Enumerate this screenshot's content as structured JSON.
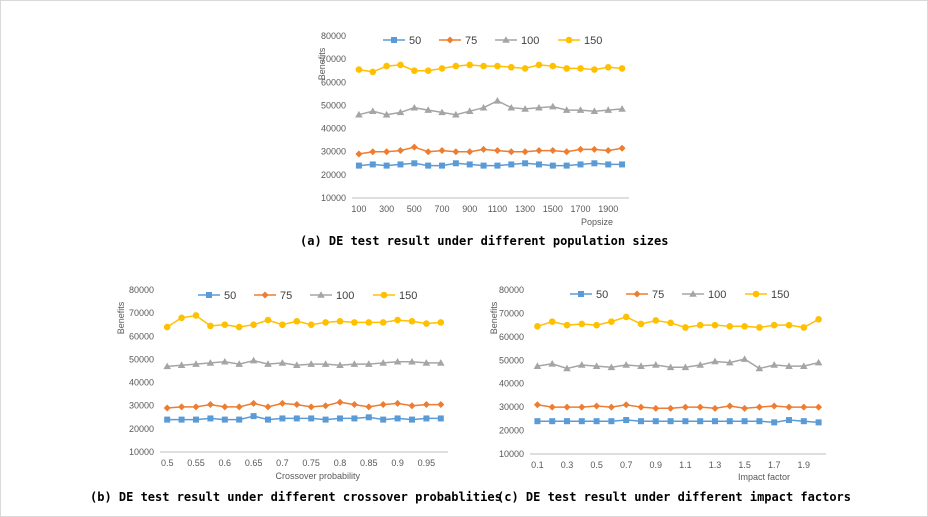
{
  "captions": {
    "a": "(a) DE test result under different population sizes",
    "b": "(b) DE test result under different crossover probablities",
    "c": "(c) DE test result under different impact factors"
  },
  "colors": {
    "s50": "#5b9bd5",
    "s75": "#ed7d31",
    "s100": "#a5a5a5",
    "s150": "#ffc000"
  },
  "chart_data": [
    {
      "type": "line",
      "ylabel": "Benefits",
      "xlabel": "Popsize",
      "ylim": [
        10000,
        80000
      ],
      "yticks": [
        "10000",
        "20000",
        "30000",
        "40000",
        "50000",
        "60000",
        "70000",
        "80000"
      ],
      "x": [
        100,
        200,
        300,
        400,
        500,
        600,
        700,
        800,
        900,
        1000,
        1100,
        1200,
        1300,
        1400,
        1500,
        1600,
        1700,
        1800,
        1900,
        2000
      ],
      "xtick_labels": [
        "100",
        "300",
        "500",
        "700",
        "900",
        "1100",
        "1300",
        "1500",
        "1700",
        "1900"
      ],
      "legend_position": "top",
      "series": [
        {
          "name": "50",
          "values": [
            24000,
            24500,
            24000,
            24500,
            25000,
            24000,
            24000,
            25000,
            24500,
            24000,
            24000,
            24500,
            25000,
            24500,
            24000,
            24000,
            24500,
            25000,
            24500,
            24500
          ]
        },
        {
          "name": "75",
          "values": [
            29000,
            30000,
            30000,
            30500,
            32000,
            30000,
            30500,
            30000,
            30000,
            31000,
            30500,
            30000,
            30000,
            30500,
            30500,
            30000,
            31000,
            31000,
            30500,
            31500
          ]
        },
        {
          "name": "100",
          "values": [
            46000,
            47500,
            46000,
            47000,
            49000,
            48000,
            47000,
            46000,
            47500,
            49000,
            52000,
            49000,
            48500,
            49000,
            49500,
            48000,
            48000,
            47500,
            48000,
            48500
          ]
        },
        {
          "name": "150",
          "values": [
            65500,
            64500,
            67000,
            67500,
            65000,
            65000,
            66000,
            67000,
            67500,
            67000,
            67000,
            66500,
            66000,
            67500,
            67000,
            66000,
            66000,
            65500,
            66500,
            66000
          ]
        }
      ]
    },
    {
      "type": "line",
      "ylabel": "Benefits",
      "xlabel": "Crossover probability",
      "ylim": [
        10000,
        80000
      ],
      "yticks": [
        "10000",
        "20000",
        "30000",
        "40000",
        "50000",
        "60000",
        "70000",
        "80000"
      ],
      "x": [
        0.5,
        0.525,
        0.55,
        0.575,
        0.6,
        0.625,
        0.65,
        0.675,
        0.7,
        0.725,
        0.75,
        0.775,
        0.8,
        0.825,
        0.85,
        0.875,
        0.9,
        0.925,
        0.95,
        0.975
      ],
      "xtick_labels": [
        "0.5",
        "0.55",
        "0.6",
        "0.65",
        "0.7",
        "0.75",
        "0.8",
        "0.85",
        "0.9",
        "0.95"
      ],
      "legend_position": "top",
      "series": [
        {
          "name": "50",
          "values": [
            24000,
            24000,
            24000,
            24500,
            24000,
            24000,
            25500,
            24000,
            24500,
            24500,
            24500,
            24000,
            24500,
            24500,
            25000,
            24000,
            24500,
            24000,
            24500,
            24500
          ]
        },
        {
          "name": "75",
          "values": [
            29000,
            29500,
            29500,
            30500,
            29500,
            29500,
            31000,
            29500,
            31000,
            30500,
            29500,
            30000,
            31500,
            30500,
            29500,
            30500,
            31000,
            30000,
            30500,
            30500
          ]
        },
        {
          "name": "100",
          "values": [
            47000,
            47500,
            48000,
            48500,
            49000,
            48000,
            49500,
            48000,
            48500,
            47500,
            48000,
            48000,
            47500,
            48000,
            48000,
            48500,
            49000,
            49000,
            48500,
            48500
          ]
        },
        {
          "name": "150",
          "values": [
            64000,
            68000,
            69000,
            64500,
            65000,
            64000,
            65000,
            67000,
            65000,
            66500,
            65000,
            66000,
            66500,
            66000,
            66000,
            66000,
            67000,
            66500,
            65500,
            66000
          ]
        }
      ]
    },
    {
      "type": "line",
      "ylabel": "Benefits",
      "xlabel": "Impact factor",
      "ylim": [
        10000,
        80000
      ],
      "yticks": [
        "10000",
        "20000",
        "30000",
        "40000",
        "50000",
        "60000",
        "70000",
        "80000"
      ],
      "x": [
        0.1,
        0.2,
        0.3,
        0.4,
        0.5,
        0.6,
        0.7,
        0.8,
        0.9,
        1.0,
        1.1,
        1.2,
        1.3,
        1.4,
        1.5,
        1.6,
        1.7,
        1.8,
        1.9,
        2.0
      ],
      "xtick_labels": [
        "0.1",
        "0.3",
        "0.5",
        "0.7",
        "0.9",
        "1.1",
        "1.3",
        "1.5",
        "1.7",
        "1.9"
      ],
      "legend_position": "top",
      "series": [
        {
          "name": "50",
          "values": [
            24000,
            24000,
            24000,
            24000,
            24000,
            24000,
            24500,
            24000,
            24000,
            24000,
            24000,
            24000,
            24000,
            24000,
            24000,
            24000,
            23500,
            24500,
            24000,
            23500
          ]
        },
        {
          "name": "75",
          "values": [
            31000,
            30000,
            30000,
            30000,
            30500,
            30000,
            31000,
            30000,
            29500,
            29500,
            30000,
            30000,
            29500,
            30500,
            29500,
            30000,
            30500,
            30000,
            30000,
            30000
          ]
        },
        {
          "name": "100",
          "values": [
            47500,
            48500,
            46500,
            48000,
            47500,
            47000,
            48000,
            47500,
            48000,
            47000,
            47000,
            48000,
            49500,
            49000,
            50500,
            46500,
            48000,
            47500,
            47500,
            49000
          ]
        },
        {
          "name": "150",
          "values": [
            64500,
            66500,
            65000,
            65500,
            65000,
            66500,
            68500,
            65500,
            67000,
            66000,
            64000,
            65000,
            65000,
            64500,
            64500,
            64000,
            65000,
            65000,
            64000,
            67500
          ]
        }
      ]
    }
  ]
}
